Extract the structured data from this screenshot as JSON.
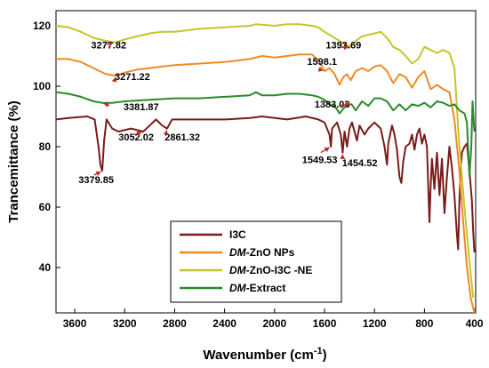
{
  "chart_data": {
    "type": "line",
    "xlabel": "Wavenumber (cm",
    "xlabel_sup": "-1",
    "xlabel_end": ")",
    "ylabel": "Trancemittance (%)",
    "xlim": [
      3750,
      390
    ],
    "ylim": [
      25,
      125
    ],
    "x_reversed": true,
    "xticks": [
      3600,
      3200,
      2800,
      2400,
      2000,
      1600,
      1200,
      800,
      400
    ],
    "yticks": [
      40,
      60,
      80,
      100,
      120
    ],
    "grid": false,
    "legend_position": "lower-center",
    "series": [
      {
        "name": "I3C",
        "legend_prefix": "",
        "legend_suffix": "I3C",
        "color": "#7b1a1a",
        "points": [
          [
            3750,
            89
          ],
          [
            3650,
            89.5
          ],
          [
            3500,
            90
          ],
          [
            3440,
            89
          ],
          [
            3410,
            80
          ],
          [
            3395,
            74
          ],
          [
            3380,
            72
          ],
          [
            3365,
            82
          ],
          [
            3345,
            89
          ],
          [
            3300,
            86
          ],
          [
            3250,
            85
          ],
          [
            3150,
            86
          ],
          [
            3052,
            85
          ],
          [
            3000,
            87
          ],
          [
            2950,
            89
          ],
          [
            2900,
            87
          ],
          [
            2861,
            86
          ],
          [
            2820,
            89
          ],
          [
            2700,
            89
          ],
          [
            2400,
            89
          ],
          [
            2200,
            89.5
          ],
          [
            2100,
            90
          ],
          [
            1900,
            89
          ],
          [
            1750,
            90
          ],
          [
            1650,
            89
          ],
          [
            1600,
            88
          ],
          [
            1580,
            86
          ],
          [
            1560,
            84
          ],
          [
            1549,
            80
          ],
          [
            1540,
            86
          ],
          [
            1500,
            88
          ],
          [
            1470,
            84
          ],
          [
            1455,
            78
          ],
          [
            1440,
            85
          ],
          [
            1420,
            80
          ],
          [
            1400,
            86
          ],
          [
            1380,
            88
          ],
          [
            1340,
            82
          ],
          [
            1320,
            87
          ],
          [
            1280,
            84
          ],
          [
            1250,
            86
          ],
          [
            1200,
            88
          ],
          [
            1150,
            86
          ],
          [
            1120,
            80
          ],
          [
            1100,
            74
          ],
          [
            1090,
            81
          ],
          [
            1060,
            87
          ],
          [
            1040,
            84
          ],
          [
            1020,
            79
          ],
          [
            1000,
            70
          ],
          [
            985,
            68
          ],
          [
            970,
            75
          ],
          [
            950,
            80
          ],
          [
            920,
            81
          ],
          [
            900,
            84
          ],
          [
            880,
            79
          ],
          [
            860,
            84
          ],
          [
            840,
            86
          ],
          [
            820,
            81
          ],
          [
            800,
            84
          ],
          [
            780,
            80
          ],
          [
            760,
            55
          ],
          [
            750,
            67
          ],
          [
            740,
            76
          ],
          [
            720,
            66
          ],
          [
            700,
            78
          ],
          [
            680,
            64
          ],
          [
            660,
            76
          ],
          [
            640,
            58
          ],
          [
            620,
            70
          ],
          [
            600,
            80
          ],
          [
            580,
            73
          ],
          [
            560,
            64
          ],
          [
            540,
            51
          ],
          [
            530,
            46
          ],
          [
            520,
            62
          ],
          [
            510,
            72
          ],
          [
            500,
            78
          ],
          [
            480,
            80
          ],
          [
            460,
            81
          ],
          [
            440,
            72
          ],
          [
            420,
            62
          ],
          [
            410,
            52
          ],
          [
            400,
            45
          ]
        ]
      },
      {
        "name": "DM-ZnO NPs",
        "legend_prefix": "DM",
        "legend_suffix": "-ZnO NPs",
        "color": "#f08a24",
        "points": [
          [
            3750,
            109
          ],
          [
            3650,
            109
          ],
          [
            3550,
            108
          ],
          [
            3450,
            106
          ],
          [
            3350,
            104
          ],
          [
            3271,
            103.5
          ],
          [
            3200,
            104.5
          ],
          [
            3100,
            105.5
          ],
          [
            3000,
            106
          ],
          [
            2900,
            106.5
          ],
          [
            2800,
            107
          ],
          [
            2600,
            107.5
          ],
          [
            2400,
            108
          ],
          [
            2200,
            109
          ],
          [
            2100,
            110
          ],
          [
            2000,
            109.5
          ],
          [
            1900,
            110
          ],
          [
            1800,
            110.5
          ],
          [
            1700,
            110.5
          ],
          [
            1650,
            108.5
          ],
          [
            1598,
            105
          ],
          [
            1560,
            106
          ],
          [
            1520,
            104
          ],
          [
            1480,
            100.5
          ],
          [
            1450,
            103
          ],
          [
            1420,
            104
          ],
          [
            1390,
            102
          ],
          [
            1350,
            105
          ],
          [
            1300,
            106
          ],
          [
            1250,
            105
          ],
          [
            1200,
            106.5
          ],
          [
            1150,
            107
          ],
          [
            1100,
            105
          ],
          [
            1050,
            101
          ],
          [
            1000,
            104
          ],
          [
            950,
            103
          ],
          [
            900,
            99.5
          ],
          [
            850,
            103
          ],
          [
            800,
            105
          ],
          [
            750,
            99
          ],
          [
            700,
            100.5
          ],
          [
            650,
            99
          ],
          [
            600,
            98
          ],
          [
            560,
            89
          ],
          [
            520,
            72
          ],
          [
            490,
            55
          ],
          [
            460,
            40
          ],
          [
            430,
            30
          ],
          [
            400,
            25
          ]
        ]
      },
      {
        "name": "DM-ZnO-I3C -NE",
        "legend_prefix": "DM",
        "legend_suffix": "-ZnO-I3C -NE",
        "color": "#c2c62a",
        "points": [
          [
            3750,
            120
          ],
          [
            3650,
            119.5
          ],
          [
            3550,
            118
          ],
          [
            3450,
            116
          ],
          [
            3350,
            115
          ],
          [
            3277,
            114.5
          ],
          [
            3200,
            115.5
          ],
          [
            3100,
            116.5
          ],
          [
            3000,
            117.5
          ],
          [
            2900,
            118
          ],
          [
            2800,
            118
          ],
          [
            2700,
            118.5
          ],
          [
            2600,
            119
          ],
          [
            2400,
            119.5
          ],
          [
            2200,
            120
          ],
          [
            2150,
            120.5
          ],
          [
            2000,
            120
          ],
          [
            1900,
            120.5
          ],
          [
            1800,
            120.5
          ],
          [
            1700,
            120
          ],
          [
            1650,
            119.5
          ],
          [
            1600,
            118
          ],
          [
            1560,
            117
          ],
          [
            1500,
            115.5
          ],
          [
            1460,
            114.5
          ],
          [
            1420,
            113.5
          ],
          [
            1393,
            113
          ],
          [
            1350,
            115
          ],
          [
            1300,
            116.5
          ],
          [
            1250,
            117
          ],
          [
            1200,
            117.5
          ],
          [
            1150,
            118
          ],
          [
            1100,
            116
          ],
          [
            1050,
            113
          ],
          [
            1000,
            112
          ],
          [
            950,
            110
          ],
          [
            900,
            107.5
          ],
          [
            850,
            109
          ],
          [
            800,
            113
          ],
          [
            750,
            112
          ],
          [
            700,
            111
          ],
          [
            650,
            112
          ],
          [
            600,
            111
          ],
          [
            560,
            106
          ],
          [
            520,
            80
          ],
          [
            480,
            60
          ],
          [
            440,
            42
          ],
          [
            410,
            30
          ]
        ]
      },
      {
        "name": "DM-Extract",
        "legend_prefix": "DM",
        "legend_suffix": "-Extract",
        "color": "#2a8a2a",
        "points": [
          [
            3750,
            98
          ],
          [
            3650,
            97.5
          ],
          [
            3550,
            96.5
          ],
          [
            3450,
            95
          ],
          [
            3381,
            94.5
          ],
          [
            3300,
            94.5
          ],
          [
            3200,
            95
          ],
          [
            3000,
            95.5
          ],
          [
            2800,
            96
          ],
          [
            2600,
            96
          ],
          [
            2400,
            96.5
          ],
          [
            2200,
            97
          ],
          [
            2150,
            98
          ],
          [
            2100,
            97
          ],
          [
            2000,
            97
          ],
          [
            1900,
            97.5
          ],
          [
            1800,
            97.5
          ],
          [
            1700,
            97
          ],
          [
            1650,
            96.5
          ],
          [
            1600,
            95.5
          ],
          [
            1560,
            94
          ],
          [
            1520,
            93.5
          ],
          [
            1480,
            91
          ],
          [
            1440,
            93
          ],
          [
            1400,
            94
          ],
          [
            1383,
            94
          ],
          [
            1350,
            92
          ],
          [
            1300,
            95
          ],
          [
            1250,
            93.5
          ],
          [
            1200,
            96
          ],
          [
            1150,
            96
          ],
          [
            1100,
            95
          ],
          [
            1050,
            92
          ],
          [
            1000,
            94
          ],
          [
            950,
            92
          ],
          [
            900,
            94
          ],
          [
            850,
            93.5
          ],
          [
            800,
            94.5
          ],
          [
            750,
            93
          ],
          [
            700,
            95
          ],
          [
            650,
            94.5
          ],
          [
            600,
            93.5
          ],
          [
            560,
            94
          ],
          [
            520,
            92
          ],
          [
            480,
            91
          ],
          [
            460,
            88
          ],
          [
            440,
            70
          ],
          [
            425,
            80
          ],
          [
            415,
            95
          ],
          [
            405,
            88
          ],
          [
            400,
            85
          ]
        ]
      }
    ],
    "annotations": [
      {
        "text": "3277.82",
        "x": 3277,
        "y": 114.5,
        "tx": 3470,
        "ty": 112.5
      },
      {
        "text": "1393.69",
        "x": 1393,
        "y": 113,
        "tx": 1590,
        "ty": 112.5
      },
      {
        "text": "3271.22",
        "x": 3271,
        "y": 103.5,
        "tx": 3280,
        "ty": 102
      },
      {
        "text": "1598.1",
        "x": 1598,
        "y": 105,
        "tx": 1740,
        "ty": 107
      },
      {
        "text": "3381.87",
        "x": 3381,
        "y": 94.5,
        "tx": 3210,
        "ty": 92
      },
      {
        "text": "1383.03",
        "x": 1383,
        "y": 94,
        "tx": 1680,
        "ty": 93
      },
      {
        "text": "3052.02",
        "x": 3052,
        "y": 85,
        "tx": 3250,
        "ty": 82
      },
      {
        "text": "2861.32",
        "x": 2861,
        "y": 86,
        "tx": 2880,
        "ty": 82
      },
      {
        "text": "3379.85",
        "x": 3379,
        "y": 72,
        "tx": 3570,
        "ty": 68
      },
      {
        "text": "1549.53",
        "x": 1549,
        "y": 80,
        "tx": 1780,
        "ty": 74.5
      },
      {
        "text": "1454.52",
        "x": 1454,
        "y": 78,
        "tx": 1460,
        "ty": 73.5
      }
    ]
  }
}
